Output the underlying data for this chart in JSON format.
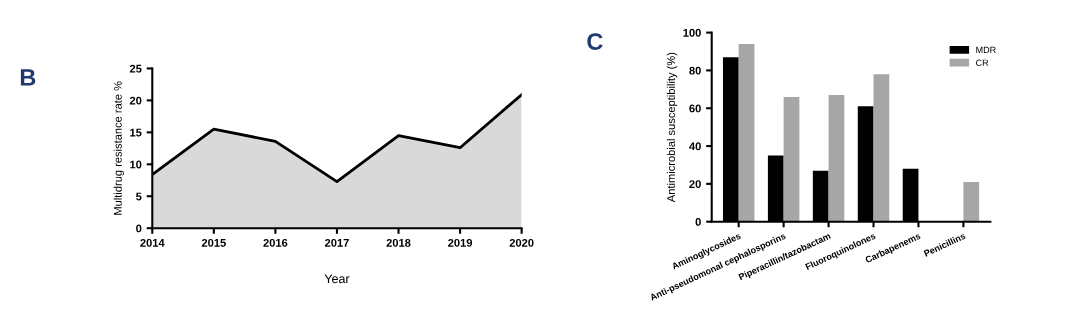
{
  "chart_data": [
    {
      "type": "area",
      "annotations": [
        "B"
      ],
      "xlabel": "Year",
      "ylabel": "Multidrug resistance rate %",
      "x": [
        2014,
        2015,
        2016,
        2017,
        2018,
        2019,
        2020
      ],
      "values": [
        8.4,
        15.5,
        13.6,
        7.3,
        14.5,
        12.6,
        20.9
      ],
      "color": "#d9d9d9",
      "xlim": [
        2014,
        2020
      ],
      "xticks": [
        2014,
        2015,
        2016,
        2017,
        2018,
        2019,
        2020
      ],
      "ylim": [
        0,
        25
      ],
      "yticks": [
        0,
        5,
        10,
        15,
        20,
        25
      ],
      "grid": false
    },
    {
      "type": "bar",
      "annotations": [
        "C"
      ],
      "ylabel": "Antimicrobial susceptibility (%)",
      "categories": [
        "Aminoglycosides",
        "Anti-pseudomonal cephalosporins",
        "Piperacillin/tazobactam",
        "Fluoroquinolones",
        "Carbapenems",
        "Penicillins"
      ],
      "series": [
        {
          "name": "MDR",
          "color": "#000000",
          "values": [
            87,
            35,
            27,
            61,
            28,
            0
          ]
        },
        {
          "name": "CR",
          "color": "#a6a6a6",
          "values": [
            94,
            66,
            67,
            78,
            0,
            21
          ]
        }
      ],
      "ylim": [
        0,
        100
      ],
      "yticks": [
        0,
        20,
        40,
        60,
        80,
        100
      ],
      "grid": false,
      "legend": "top right"
    }
  ]
}
